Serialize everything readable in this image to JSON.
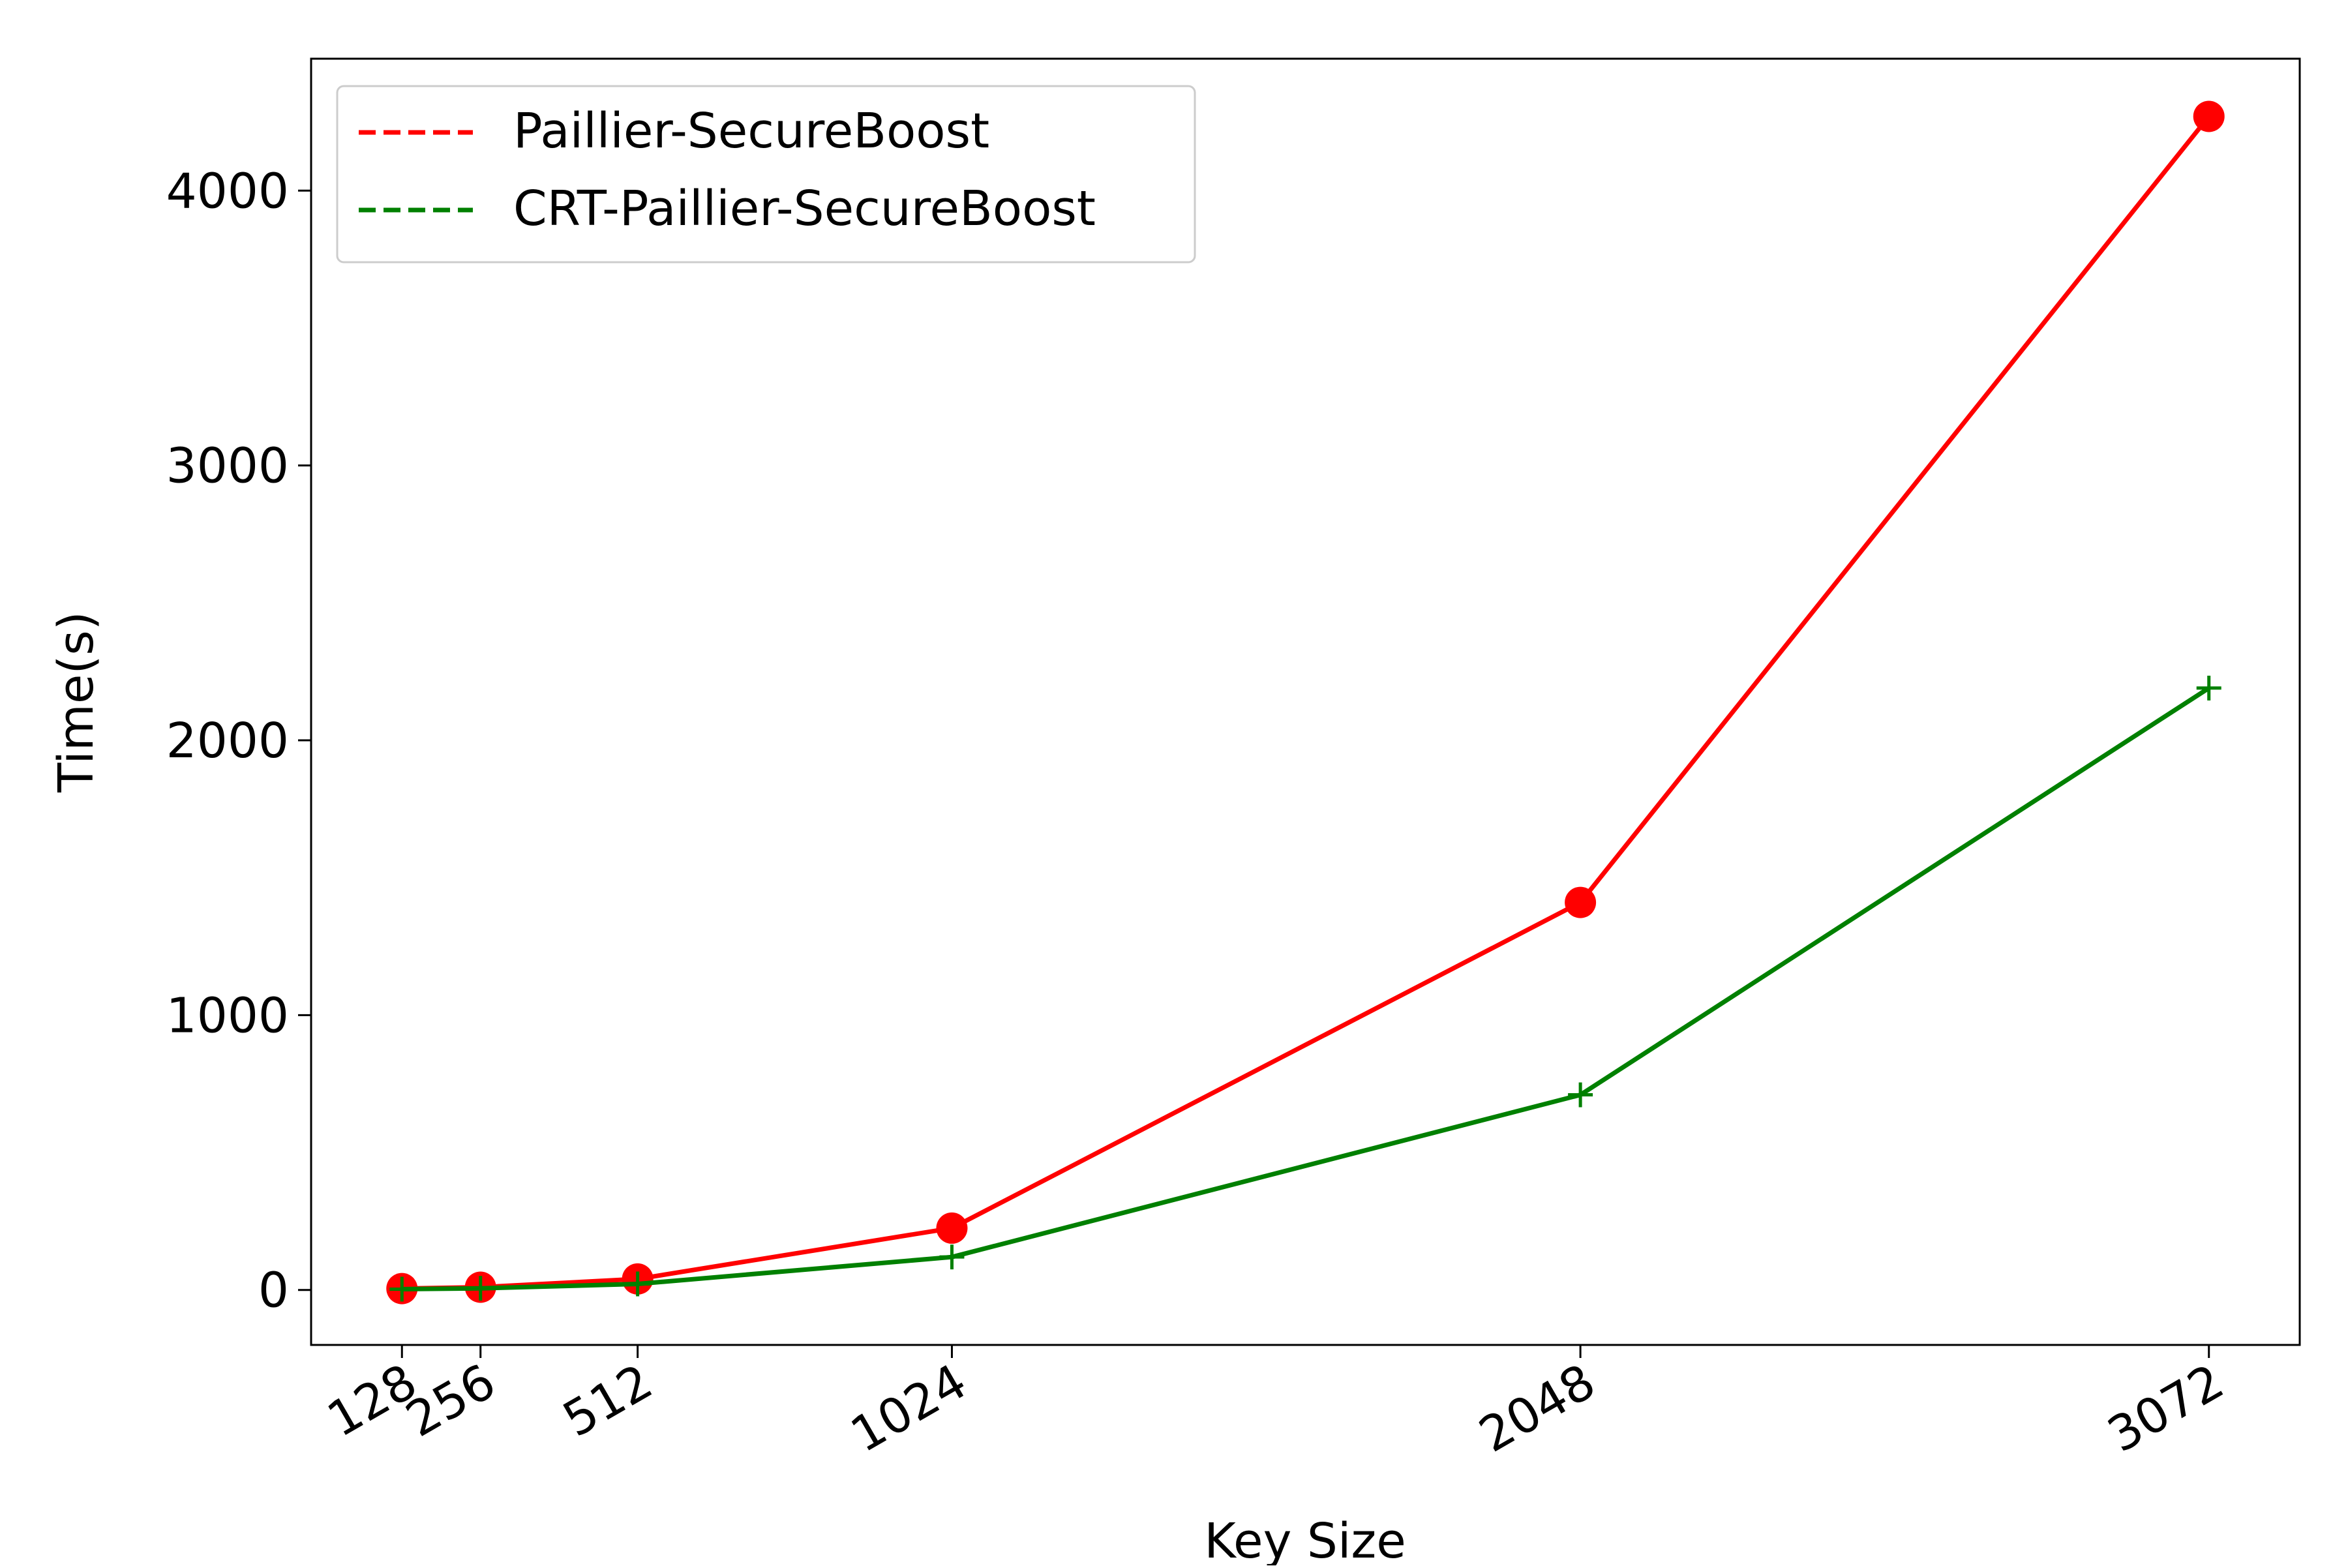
{
  "chart_data": {
    "type": "line",
    "title": "",
    "xlabel": "Key Size",
    "ylabel": "Time(s)",
    "x": [
      128,
      256,
      512,
      1024,
      2048,
      3072
    ],
    "x_tick_labels": [
      "128",
      "256",
      "512",
      "1024",
      "2048",
      "3072"
    ],
    "xlim": [
      -20,
      3220
    ],
    "ylim": [
      -200,
      4480
    ],
    "y_ticks": [
      0,
      1000,
      2000,
      3000,
      4000
    ],
    "y_tick_labels": [
      "0",
      "1000",
      "2000",
      "3000",
      "4000"
    ],
    "grid": false,
    "legend": {
      "placement": "top-left",
      "line_style": "dashed"
    },
    "series": [
      {
        "name": "Paillier-SecureBoost",
        "color": "#ff0000",
        "marker": "circle",
        "values": [
          5,
          10,
          40,
          225,
          1410,
          4270
        ]
      },
      {
        "name": "CRT-Paillier-SecureBoost",
        "color": "#008000",
        "marker": "plus",
        "values": [
          3,
          6,
          22,
          120,
          710,
          2190
        ]
      }
    ]
  }
}
